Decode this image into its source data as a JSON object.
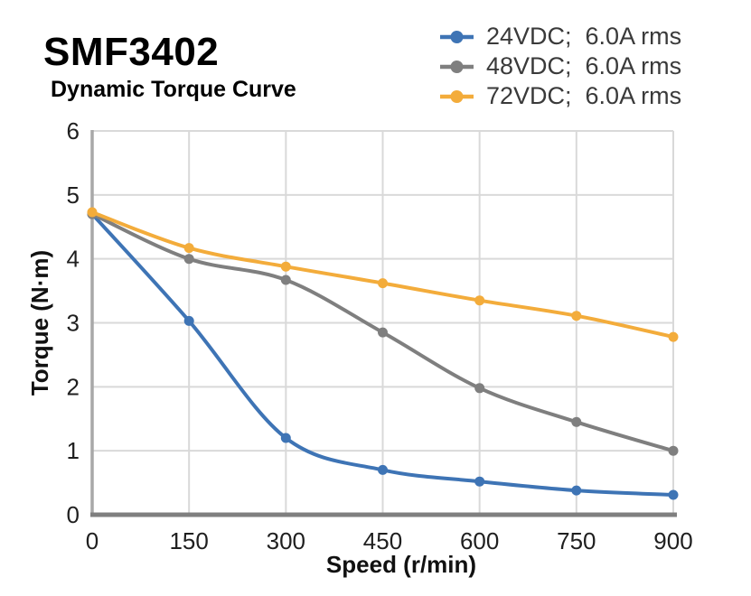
{
  "chart_data": {
    "type": "line",
    "title": "SMF3402",
    "subtitle": "Dynamic Torque Curve",
    "xlabel": "Speed (r/min)",
    "ylabel": "Torque (N·m)",
    "x": [
      0,
      150,
      300,
      450,
      600,
      750,
      900
    ],
    "series": [
      {
        "name": "24VDC;  6.0A rms",
        "color": "#3e74b5",
        "values": [
          4.7,
          3.03,
          1.2,
          0.7,
          0.52,
          0.38,
          0.31
        ]
      },
      {
        "name": "48VDC;  6.0A rms",
        "color": "#7f7f7f",
        "values": [
          4.7,
          4.0,
          3.67,
          2.85,
          1.98,
          1.45,
          1.0
        ]
      },
      {
        "name": "72VDC;  6.0A rms",
        "color": "#f3ac3b",
        "values": [
          4.73,
          4.17,
          3.88,
          3.62,
          3.35,
          3.11,
          2.78
        ]
      }
    ],
    "xlim": [
      0,
      900
    ],
    "ylim": [
      0,
      6
    ],
    "xticks": [
      0,
      150,
      300,
      450,
      600,
      750,
      900
    ],
    "yticks": [
      0,
      1,
      2,
      3,
      4,
      5,
      6
    ],
    "grid": true,
    "legend_position": "top-right",
    "marker": "circle",
    "styles": {
      "gridline_color": "#d9d9d9",
      "y_axis_color": "#a8a8a8",
      "x_axis_color": "#7f7f7f",
      "tick_label_color": "#1f1f1f",
      "axis_title_color": "#111111",
      "line_width": 4,
      "marker_radius": 5.5
    }
  }
}
